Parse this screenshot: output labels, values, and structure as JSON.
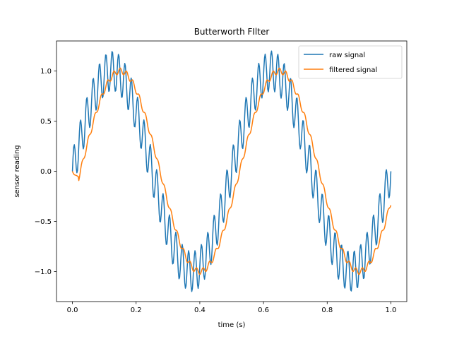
{
  "chart_data": {
    "type": "line",
    "title": "Butterworth FIlter",
    "xlabel": "time (s)",
    "ylabel": "sensor reading",
    "xlim": [
      -0.05,
      1.05
    ],
    "ylim": [
      -1.3,
      1.3
    ],
    "xticks": [
      0.0,
      0.2,
      0.4,
      0.6,
      0.8,
      1.0
    ],
    "xtick_labels": [
      "0.0",
      "0.2",
      "0.4",
      "0.6",
      "0.8",
      "1.0"
    ],
    "yticks": [
      -1.0,
      -0.5,
      0.0,
      0.5,
      1.0
    ],
    "ytick_labels": [
      "−1.0",
      "−0.5",
      "0.0",
      "0.5",
      "1.0"
    ],
    "grid": false,
    "legend_position": "top-right",
    "series": [
      {
        "name": "raw signal",
        "color": "#1f77b4",
        "description_values": {
          "fundamental_frequency_hz": 2,
          "fundamental_amplitude": 1.0,
          "harmonic_frequency_hz": 50,
          "harmonic_amplitude": 0.2,
          "x_range": [
            0,
            1
          ],
          "num_points": 500
        }
      },
      {
        "name": "filtered signal",
        "color": "#ff7f0e",
        "description_values": {
          "frequency_hz": 2,
          "amplitude": 1.0,
          "x_range": [
            0,
            1
          ],
          "num_points": 500,
          "small_ripple_amplitude": 0.03
        }
      }
    ]
  }
}
